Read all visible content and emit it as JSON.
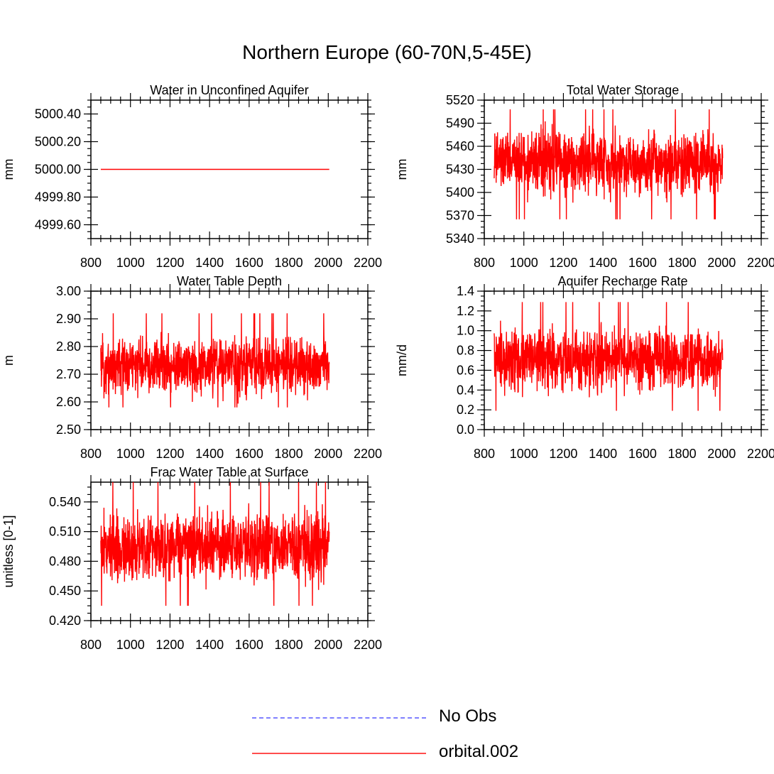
{
  "figure_title": "Northern Europe (60-70N,5-45E)",
  "colors": {
    "series": "#ff0000",
    "obs": "#7f7fff",
    "axis": "#000000"
  },
  "legend": [
    {
      "label": "No Obs",
      "style": "dashed",
      "color": "#7f7fff"
    },
    {
      "label": "orbital.002",
      "style": "solid",
      "color": "#ff4d4d"
    }
  ],
  "chart_data": [
    {
      "type": "line",
      "title": "Water in Unconfined Aquifer",
      "ylabel": "mm",
      "xlim": [
        800,
        2200
      ],
      "ylim": [
        4999.5,
        5000.5
      ],
      "xticks": [
        "800",
        "1000",
        "1200",
        "1400",
        "1600",
        "1800",
        "2000",
        "2200"
      ],
      "yticks": [
        {
          "v": 4999.6,
          "label": "4999.60"
        },
        {
          "v": 4999.8,
          "label": "4999.80"
        },
        {
          "v": 5000.0,
          "label": "5000.00"
        },
        {
          "v": 5000.2,
          "label": "5000.20"
        },
        {
          "v": 5000.4,
          "label": "5000.40"
        }
      ],
      "series": [
        {
          "name": "orbital.002",
          "x_range": [
            850,
            2005
          ],
          "mean": 5000.0,
          "min": 5000.0,
          "max": 5000.0
        }
      ]
    },
    {
      "type": "line",
      "title": "Total Water Storage",
      "ylabel": "mm",
      "xlim": [
        800,
        2200
      ],
      "ylim": [
        5340,
        5520
      ],
      "xticks": [
        "800",
        "1000",
        "1200",
        "1400",
        "1600",
        "1800",
        "2000",
        "2200"
      ],
      "yticks": [
        {
          "v": 5340,
          "label": "5340"
        },
        {
          "v": 5370,
          "label": "5370"
        },
        {
          "v": 5400,
          "label": "5400"
        },
        {
          "v": 5430,
          "label": "5430"
        },
        {
          "v": 5460,
          "label": "5460"
        },
        {
          "v": 5490,
          "label": "5490"
        },
        {
          "v": 5520,
          "label": "5520"
        }
      ],
      "series": [
        {
          "name": "orbital.002",
          "x_range": [
            850,
            2005
          ],
          "mean": 5440,
          "min": 5365,
          "max": 5508
        }
      ]
    },
    {
      "type": "line",
      "title": "Water Table Depth",
      "ylabel": "m",
      "xlim": [
        800,
        2200
      ],
      "ylim": [
        2.5,
        3.0
      ],
      "xticks": [
        "800",
        "1000",
        "1200",
        "1400",
        "1600",
        "1800",
        "2000",
        "2200"
      ],
      "yticks": [
        {
          "v": 2.5,
          "label": "2.50"
        },
        {
          "v": 2.6,
          "label": "2.60"
        },
        {
          "v": 2.7,
          "label": "2.70"
        },
        {
          "v": 2.8,
          "label": "2.80"
        },
        {
          "v": 2.9,
          "label": "2.90"
        },
        {
          "v": 3.0,
          "label": "3.00"
        }
      ],
      "series": [
        {
          "name": "orbital.002",
          "x_range": [
            850,
            2005
          ],
          "mean": 2.73,
          "min": 2.58,
          "max": 2.92
        }
      ]
    },
    {
      "type": "line",
      "title": "Aquifer Recharge Rate",
      "ylabel": "mm/d",
      "xlim": [
        800,
        2200
      ],
      "ylim": [
        0.0,
        1.4
      ],
      "xticks": [
        "800",
        "1000",
        "1200",
        "1400",
        "1600",
        "1800",
        "2000",
        "2200"
      ],
      "yticks": [
        {
          "v": 0.0,
          "label": "0.0"
        },
        {
          "v": 0.2,
          "label": "0.2"
        },
        {
          "v": 0.4,
          "label": "0.4"
        },
        {
          "v": 0.6,
          "label": "0.6"
        },
        {
          "v": 0.8,
          "label": "0.8"
        },
        {
          "v": 1.0,
          "label": "1.0"
        },
        {
          "v": 1.2,
          "label": "1.2"
        },
        {
          "v": 1.4,
          "label": "1.4"
        }
      ],
      "series": [
        {
          "name": "orbital.002",
          "x_range": [
            850,
            2005
          ],
          "mean": 0.7,
          "min": 0.19,
          "max": 1.29
        }
      ]
    },
    {
      "type": "line",
      "title": "Frac Water Table at Surface",
      "ylabel": "unitless [0-1]",
      "xlim": [
        800,
        2200
      ],
      "ylim": [
        0.42,
        0.56
      ],
      "xticks": [
        "800",
        "1000",
        "1200",
        "1400",
        "1600",
        "1800",
        "2000",
        "2200"
      ],
      "yticks": [
        {
          "v": 0.42,
          "label": "0.420"
        },
        {
          "v": 0.45,
          "label": "0.450"
        },
        {
          "v": 0.48,
          "label": "0.480"
        },
        {
          "v": 0.51,
          "label": "0.510"
        },
        {
          "v": 0.54,
          "label": "0.540"
        }
      ],
      "series": [
        {
          "name": "orbital.002",
          "x_range": [
            850,
            2005
          ],
          "mean": 0.495,
          "min": 0.435,
          "max": 0.56
        }
      ]
    }
  ]
}
